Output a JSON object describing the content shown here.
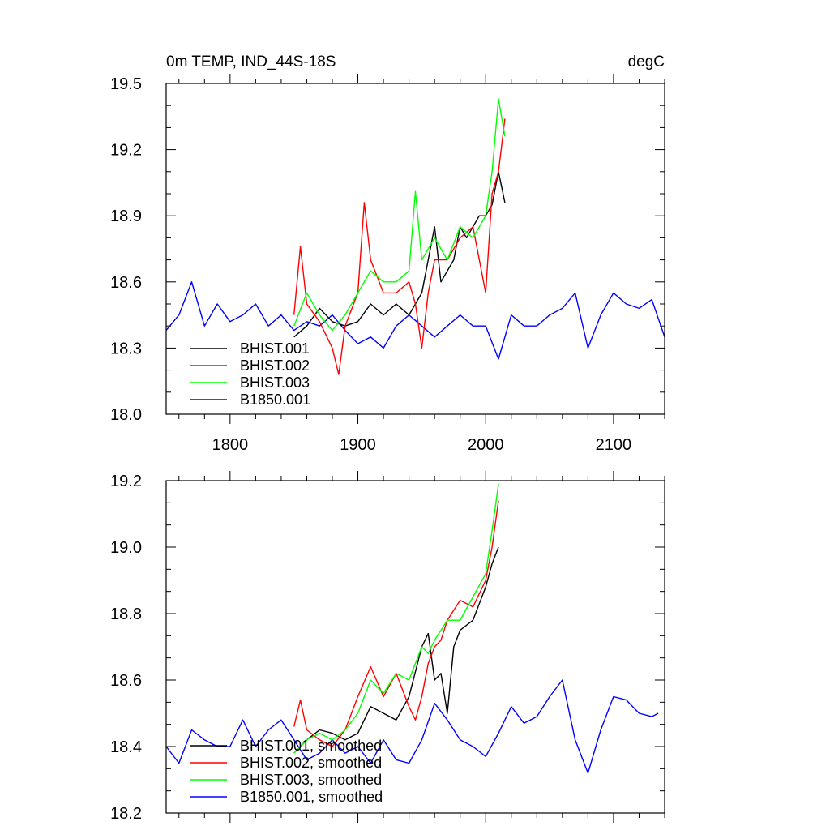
{
  "chart_data": [
    {
      "type": "line",
      "title": "0m TEMP, IND_44S-18S",
      "units": "degC",
      "xlim": [
        1750,
        2140
      ],
      "ylim": [
        18.0,
        19.5
      ],
      "xticks": [
        1800,
        1900,
        2000,
        2100
      ],
      "xtick_labels": [
        "1800",
        "1900",
        "2000",
        "2100"
      ],
      "yticks": [
        18.0,
        18.3,
        18.6,
        18.9,
        19.2,
        19.5
      ],
      "ytick_labels": [
        "18.0",
        "18.3",
        "18.6",
        "18.9",
        "19.2",
        "19.5"
      ],
      "legend_position": "bottom-left",
      "series": [
        {
          "name": "BHIST.001",
          "color": "#000000",
          "x": [
            1850,
            1860,
            1870,
            1880,
            1890,
            1900,
            1910,
            1920,
            1930,
            1940,
            1950,
            1955,
            1960,
            1965,
            1970,
            1975,
            1980,
            1985,
            1990,
            1995,
            2000,
            2005,
            2010,
            2015
          ],
          "y": [
            18.35,
            18.4,
            18.48,
            18.42,
            18.4,
            18.42,
            18.5,
            18.45,
            18.5,
            18.45,
            18.55,
            18.7,
            18.85,
            18.6,
            18.65,
            18.7,
            18.85,
            18.8,
            18.85,
            18.9,
            18.9,
            18.95,
            19.1,
            18.96
          ]
        },
        {
          "name": "BHIST.002",
          "color": "#ff0000",
          "x": [
            1850,
            1855,
            1860,
            1870,
            1880,
            1885,
            1890,
            1900,
            1905,
            1910,
            1920,
            1930,
            1940,
            1945,
            1950,
            1955,
            1960,
            1970,
            1980,
            1990,
            2000,
            2005,
            2010,
            2015
          ],
          "y": [
            18.45,
            18.76,
            18.5,
            18.42,
            18.3,
            18.18,
            18.4,
            18.55,
            18.96,
            18.7,
            18.55,
            18.55,
            18.6,
            18.5,
            18.3,
            18.55,
            18.7,
            18.7,
            18.8,
            18.85,
            18.55,
            19.0,
            19.1,
            19.34
          ]
        },
        {
          "name": "BHIST.003",
          "color": "#00ff00",
          "x": [
            1850,
            1860,
            1870,
            1880,
            1890,
            1900,
            1910,
            1920,
            1930,
            1940,
            1945,
            1950,
            1955,
            1960,
            1970,
            1980,
            1990,
            2000,
            2005,
            2010,
            2015
          ],
          "y": [
            18.4,
            18.55,
            18.45,
            18.38,
            18.45,
            18.55,
            18.65,
            18.6,
            18.6,
            18.65,
            19.01,
            18.7,
            18.75,
            18.8,
            18.7,
            18.85,
            18.8,
            18.9,
            19.1,
            19.43,
            19.26
          ]
        },
        {
          "name": "B1850.001",
          "color": "#0000ff",
          "x": [
            1750,
            1760,
            1770,
            1780,
            1790,
            1800,
            1810,
            1820,
            1830,
            1840,
            1850,
            1860,
            1870,
            1880,
            1890,
            1900,
            1910,
            1920,
            1930,
            1940,
            1950,
            1960,
            1970,
            1980,
            1990,
            2000,
            2010,
            2020,
            2030,
            2040,
            2050,
            2060,
            2070,
            2080,
            2090,
            2100,
            2110,
            2120,
            2130,
            2140
          ],
          "y": [
            18.38,
            18.45,
            18.6,
            18.4,
            18.5,
            18.42,
            18.45,
            18.5,
            18.4,
            18.45,
            18.38,
            18.42,
            18.4,
            18.45,
            18.38,
            18.32,
            18.35,
            18.3,
            18.4,
            18.45,
            18.4,
            18.35,
            18.4,
            18.45,
            18.4,
            18.4,
            18.25,
            18.45,
            18.4,
            18.4,
            18.45,
            18.48,
            18.55,
            18.3,
            18.45,
            18.55,
            18.5,
            18.48,
            18.52,
            18.35
          ]
        }
      ]
    },
    {
      "type": "line",
      "xlim": [
        1750,
        2140
      ],
      "ylim": [
        18.2,
        19.2
      ],
      "xticks": [
        1800,
        1900,
        2000,
        2100
      ],
      "yticks": [
        18.2,
        18.4,
        18.6,
        18.8,
        19.0,
        19.2
      ],
      "ytick_labels": [
        "18.2",
        "18.4",
        "18.6",
        "18.8",
        "19.0",
        "19.2"
      ],
      "legend_position": "bottom-left",
      "series": [
        {
          "name": "BHIST.001, smoothed",
          "color": "#000000",
          "x": [
            1850,
            1860,
            1870,
            1880,
            1890,
            1900,
            1910,
            1920,
            1930,
            1940,
            1950,
            1955,
            1960,
            1965,
            1970,
            1975,
            1980,
            1990,
            2000,
            2005,
            2010
          ],
          "y": [
            18.38,
            18.42,
            18.45,
            18.44,
            18.42,
            18.44,
            18.52,
            18.5,
            18.48,
            18.55,
            18.7,
            18.74,
            18.6,
            18.62,
            18.5,
            18.7,
            18.75,
            18.78,
            18.88,
            18.95,
            19.0
          ]
        },
        {
          "name": "BHIST.002, smoothed",
          "color": "#ff0000",
          "x": [
            1850,
            1855,
            1860,
            1870,
            1880,
            1890,
            1900,
            1910,
            1920,
            1930,
            1940,
            1945,
            1950,
            1955,
            1960,
            1965,
            1970,
            1980,
            1990,
            2000,
            2005,
            2010
          ],
          "y": [
            18.46,
            18.54,
            18.45,
            18.42,
            18.4,
            18.45,
            18.55,
            18.64,
            18.55,
            18.62,
            18.52,
            18.48,
            18.55,
            18.65,
            18.7,
            18.72,
            18.78,
            18.84,
            18.82,
            18.9,
            19.0,
            19.14
          ]
        },
        {
          "name": "BHIST.003, smoothed",
          "color": "#00ff00",
          "x": [
            1850,
            1860,
            1870,
            1880,
            1890,
            1900,
            1910,
            1920,
            1930,
            1940,
            1950,
            1955,
            1960,
            1970,
            1980,
            1990,
            2000,
            2005,
            2010
          ],
          "y": [
            18.38,
            18.42,
            18.44,
            18.42,
            18.45,
            18.5,
            18.6,
            18.56,
            18.62,
            18.6,
            18.7,
            18.68,
            18.72,
            18.78,
            18.78,
            18.85,
            18.92,
            19.05,
            19.19
          ]
        },
        {
          "name": "B1850.001, smoothed",
          "color": "#0000ff",
          "x": [
            1750,
            1760,
            1770,
            1780,
            1790,
            1800,
            1810,
            1820,
            1830,
            1840,
            1850,
            1860,
            1870,
            1880,
            1890,
            1900,
            1910,
            1920,
            1930,
            1940,
            1950,
            1960,
            1970,
            1980,
            1990,
            2000,
            2010,
            2020,
            2030,
            2040,
            2050,
            2060,
            2070,
            2080,
            2090,
            2100,
            2110,
            2120,
            2130,
            2135
          ],
          "y": [
            18.4,
            18.35,
            18.45,
            18.42,
            18.4,
            18.4,
            18.48,
            18.4,
            18.45,
            18.48,
            18.42,
            18.36,
            18.38,
            18.42,
            18.38,
            18.4,
            18.35,
            18.42,
            18.36,
            18.35,
            18.42,
            18.53,
            18.48,
            18.42,
            18.4,
            18.37,
            18.44,
            18.52,
            18.47,
            18.49,
            18.55,
            18.6,
            18.42,
            18.32,
            18.45,
            18.55,
            18.54,
            18.5,
            18.49,
            18.5
          ]
        }
      ]
    }
  ]
}
